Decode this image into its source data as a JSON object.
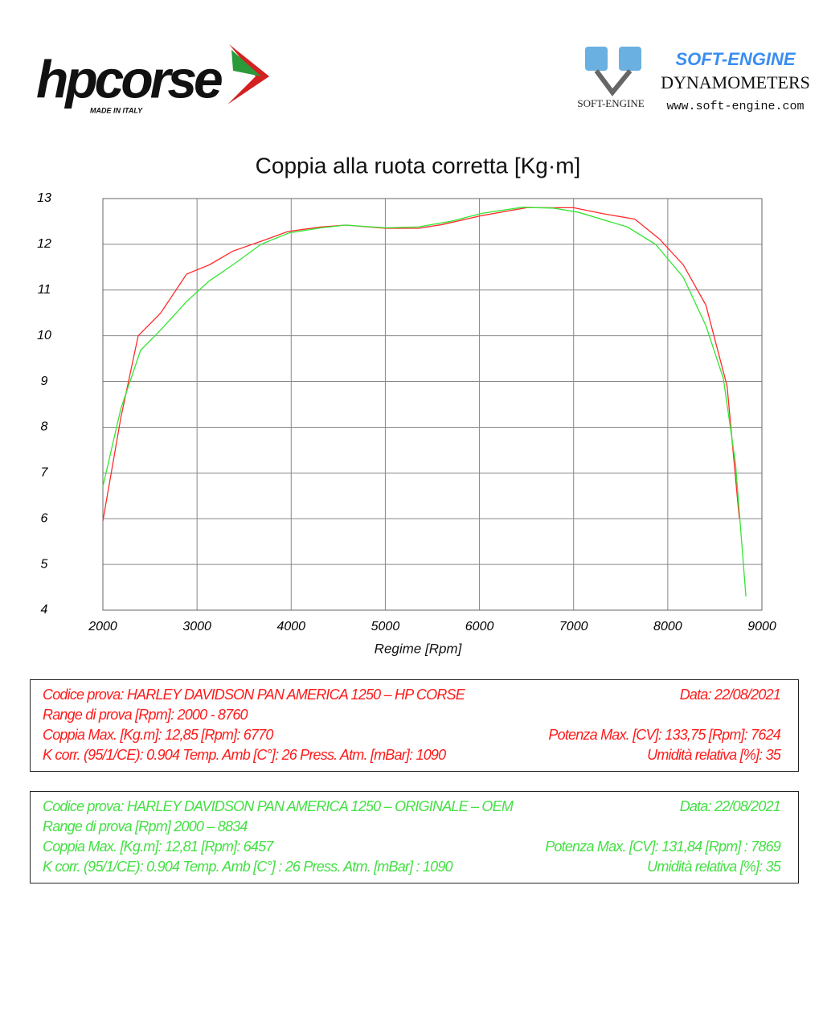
{
  "header": {
    "brand_left": "hpcorse",
    "brand_left_tagline": "MADE IN ITALY",
    "brand_right": "SOFT-ENGINE",
    "brand_right_sub": "DYNAMOMETERS",
    "brand_right_url": "www.soft-engine.com",
    "brand_right_logo": "SOFT-ENGINE"
  },
  "chart_data": {
    "type": "line",
    "title": "Coppia alla ruota corretta [Kg·m]",
    "x_label": "Regime [Rpm]",
    "xlim": [
      2000,
      9000
    ],
    "xticks": [
      2000,
      3000,
      4000,
      5000,
      6000,
      7000,
      8000,
      9000
    ],
    "ylim": [
      4,
      13
    ],
    "yticks": [
      4,
      5,
      6,
      7,
      8,
      9,
      10,
      11,
      12,
      13
    ],
    "grid": true,
    "series": [
      {
        "color": "#ff2a2a",
        "x": [
          2000,
          2190,
          2375,
          2615,
          2890,
          3130,
          3380,
          3725,
          3965,
          4320,
          4580,
          5005,
          5350,
          5600,
          6030,
          6500,
          7000,
          7310,
          7650,
          7910,
          8165,
          8405,
          8630,
          8760
        ],
        "values": [
          5.95,
          8.2,
          10.0,
          10.5,
          11.35,
          11.55,
          11.85,
          12.1,
          12.28,
          12.38,
          12.42,
          12.35,
          12.35,
          12.43,
          12.63,
          12.8,
          12.8,
          12.67,
          12.55,
          12.12,
          11.55,
          10.67,
          8.9,
          6.0
        ]
      },
      {
        "color": "#33e633",
        "x": [
          2000,
          2190,
          2400,
          2615,
          2890,
          3130,
          3380,
          3680,
          3980,
          4320,
          4580,
          5005,
          5350,
          5690,
          6030,
          6460,
          6790,
          7050,
          7570,
          7870,
          8165,
          8405,
          8590,
          8720,
          8830
        ],
        "values": [
          6.7,
          8.4,
          9.68,
          10.13,
          10.75,
          11.2,
          11.55,
          12.0,
          12.25,
          12.36,
          12.42,
          12.36,
          12.38,
          12.5,
          12.68,
          12.81,
          12.79,
          12.7,
          12.38,
          12.0,
          11.28,
          10.22,
          9.07,
          7.2,
          4.3
        ]
      }
    ]
  },
  "test_boxes": [
    {
      "color": "#ff1a1a",
      "rows": [
        [
          "Codice prova: HARLEY DAVIDSON  PAN AMERICA 1250 – HP CORSE",
          "Data: 22/08/2021"
        ],
        [
          "Range di prova  [Rpm]: 2000 - 8760",
          ""
        ],
        [
          "Coppia Max. [Kg.m]:  12,85 [Rpm]: 6770",
          "Potenza Max. [CV]:  133,75 [Rpm]: 7624"
        ],
        [
          "K corr. (95/1/CE): 0.904    Temp. Amb  [C°]: 26      Press. Atm.  [mBar]: 1090",
          "Umidità relativa [%]: 35"
        ]
      ]
    },
    {
      "color": "#44e044",
      "rows": [
        [
          "Codice prova: HARLEY DAVIDSON  PAN AMERICA 1250 – ORIGINALE – OEM",
          "Data: 22/08/2021"
        ],
        [
          "Range di prova [Rpm] 2000 – 8834",
          ""
        ],
        [
          "Coppia Max.  [Kg.m]:  12,81  [Rpm]:  6457",
          "Potenza Max. [CV]:  131,84  [Rpm] : 7869"
        ],
        [
          "K corr. (95/1/CE): 0.904    Temp. Amb [C°] : 26       Press. Atm. [mBar] : 1090",
          "Umidità relativa [%]: 35"
        ]
      ]
    }
  ]
}
